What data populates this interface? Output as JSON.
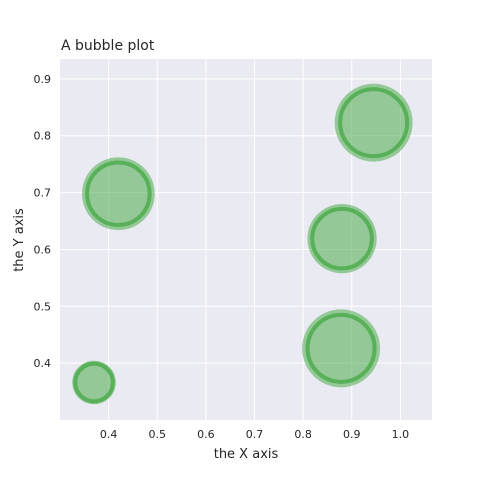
{
  "chart_data": {
    "type": "scatter",
    "title": "A bubble plot",
    "xlabel": "the X axis",
    "ylabel": "the Y axis",
    "xlim": [
      0.3,
      1.065
    ],
    "ylim": [
      0.3,
      0.935
    ],
    "xticks": [
      0.4,
      0.5,
      0.6,
      0.7,
      0.8,
      0.9,
      1.0
    ],
    "xtick_labels": [
      "0.4",
      "0.5",
      "0.6",
      "0.7",
      "0.8",
      "0.9",
      "1.0"
    ],
    "yticks": [
      0.4,
      0.5,
      0.6,
      0.7,
      0.8,
      0.9
    ],
    "ytick_labels": [
      "0.4",
      "0.5",
      "0.6",
      "0.7",
      "0.8",
      "0.9"
    ],
    "grid": true,
    "background": "#eaeaf2",
    "gridColor": "#ffffff",
    "bubbleFill": "#4dac4d",
    "bubbleEdge": "#4dac4d",
    "points": [
      {
        "x": 0.42,
        "y": 0.698,
        "size": 0.75
      },
      {
        "x": 0.37,
        "y": 0.366,
        "size": 0.27
      },
      {
        "x": 0.88,
        "y": 0.619,
        "size": 0.68
      },
      {
        "x": 0.878,
        "y": 0.426,
        "size": 0.86
      },
      {
        "x": 0.945,
        "y": 0.823,
        "size": 0.86
      }
    ]
  }
}
